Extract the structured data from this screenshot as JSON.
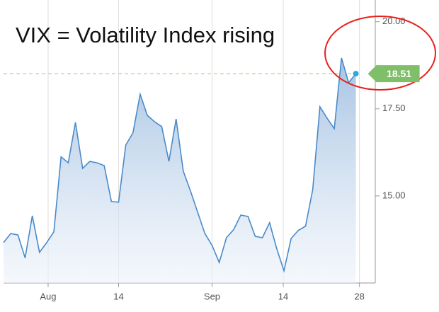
{
  "chart_data": {
    "type": "line",
    "annotation": "VIX = Volatility Index rising",
    "x": [
      0,
      1,
      2,
      3,
      4,
      5,
      6,
      7,
      8,
      9,
      10,
      11,
      12,
      13,
      14,
      15,
      16,
      17,
      18,
      19,
      20,
      21,
      22,
      23,
      24,
      25,
      26,
      27,
      28,
      29,
      30,
      31,
      32,
      33,
      34,
      35,
      36,
      37,
      38,
      39,
      40,
      41,
      42,
      43,
      44,
      45,
      46,
      47,
      48,
      49
    ],
    "values": [
      13.66,
      13.92,
      13.88,
      13.22,
      14.43,
      13.38,
      13.66,
      13.97,
      16.12,
      15.95,
      17.11,
      15.79,
      15.99,
      15.95,
      15.87,
      14.84,
      14.82,
      16.46,
      16.81,
      17.92,
      17.31,
      17.13,
      16.99,
      15.99,
      17.21,
      15.71,
      15.14,
      14.53,
      13.92,
      13.58,
      13.09,
      13.8,
      14.03,
      14.45,
      14.41,
      13.84,
      13.8,
      14.23,
      13.48,
      12.85,
      13.78,
      14.01,
      14.13,
      15.18,
      17.56,
      17.23,
      16.93,
      18.96,
      18.25,
      18.51
    ],
    "color": "#4a8ac9",
    "last_value_color": "#7fbf6a",
    "xlim": [
      0,
      51.7
    ],
    "ylim": [
      12.5,
      20.4
    ],
    "xticks": [
      {
        "value": 6.2,
        "label": "Aug"
      },
      {
        "value": 16.0,
        "label": "14"
      },
      {
        "value": 29.0,
        "label": "Sep"
      },
      {
        "value": 38.9,
        "label": "14"
      },
      {
        "value": 49.5,
        "label": "28"
      }
    ],
    "yticks": [
      {
        "value": 15,
        "label": "15.00"
      },
      {
        "value": 17.5,
        "label": "17.50"
      },
      {
        "value": 20,
        "label": "20.00"
      }
    ],
    "grid": "x"
  }
}
